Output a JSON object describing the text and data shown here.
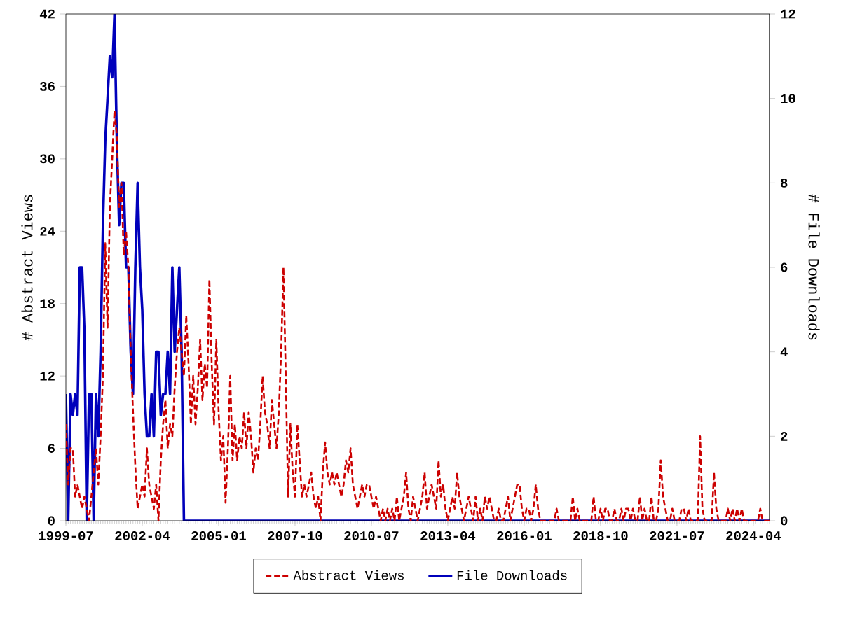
{
  "chart_data": {
    "type": "line",
    "xlabel": null,
    "ylabel": "# Abstract Views",
    "y2label": "# File Downloads",
    "x": [
      "1999-07",
      "1999-08",
      "1999-09",
      "1999-10",
      "1999-11",
      "1999-12",
      "2000-01",
      "2000-02",
      "2000-03",
      "2000-04",
      "2000-05",
      "2000-06",
      "2000-07",
      "2000-08",
      "2000-09",
      "2000-10",
      "2000-11",
      "2000-12",
      "2001-01",
      "2001-02",
      "2001-03",
      "2001-04",
      "2001-05",
      "2001-06",
      "2001-07",
      "2001-08",
      "2001-09",
      "2001-10",
      "2001-11",
      "2001-12",
      "2002-01",
      "2002-02",
      "2002-03",
      "2002-04",
      "2002-05",
      "2002-06",
      "2002-07",
      "2002-08",
      "2002-09",
      "2002-10",
      "2002-11",
      "2002-12",
      "2003-01",
      "2003-02",
      "2003-03",
      "2003-04",
      "2003-05",
      "2003-06",
      "2003-07",
      "2003-08",
      "2003-09",
      "2003-10",
      "2003-11",
      "2003-12",
      "2004-01",
      "2004-02",
      "2004-03",
      "2004-04",
      "2004-05",
      "2004-06",
      "2004-07",
      "2004-08",
      "2004-09",
      "2004-10",
      "2004-11",
      "2004-12",
      "2005-01",
      "2005-02",
      "2005-03",
      "2005-04",
      "2005-05",
      "2005-06",
      "2005-07",
      "2005-08",
      "2005-09",
      "2005-10",
      "2005-11",
      "2005-12",
      "2006-01",
      "2006-02",
      "2006-03",
      "2006-04",
      "2006-05",
      "2006-06",
      "2006-07",
      "2006-08",
      "2006-09",
      "2006-10",
      "2006-11",
      "2006-12",
      "2007-01",
      "2007-02",
      "2007-03",
      "2007-04",
      "2007-05",
      "2007-06",
      "2007-07",
      "2007-08",
      "2007-09",
      "2007-10",
      "2007-11",
      "2007-12",
      "2008-01",
      "2008-02",
      "2008-03",
      "2008-04",
      "2008-05",
      "2008-06",
      "2008-07",
      "2008-08",
      "2008-09",
      "2008-10",
      "2008-11",
      "2008-12",
      "2009-01",
      "2009-02",
      "2009-03",
      "2009-04",
      "2009-05",
      "2009-06",
      "2009-07",
      "2009-08",
      "2009-09",
      "2009-10",
      "2009-11",
      "2009-12",
      "2010-01",
      "2010-02",
      "2010-03",
      "2010-04",
      "2010-05",
      "2010-06",
      "2010-07",
      "2010-08",
      "2010-09",
      "2010-10",
      "2010-11",
      "2010-12",
      "2011-01",
      "2011-02",
      "2011-03",
      "2011-04",
      "2011-05",
      "2011-06",
      "2011-07",
      "2011-08",
      "2011-09",
      "2011-10",
      "2011-11",
      "2011-12",
      "2012-01",
      "2012-02",
      "2012-03",
      "2012-04",
      "2012-05",
      "2012-06",
      "2012-07",
      "2012-08",
      "2012-09",
      "2012-10",
      "2012-11",
      "2012-12",
      "2013-01",
      "2013-02",
      "2013-03",
      "2013-04",
      "2013-05",
      "2013-06",
      "2013-07",
      "2013-08",
      "2013-09",
      "2013-10",
      "2013-11",
      "2013-12",
      "2014-01",
      "2014-02",
      "2014-03",
      "2014-04",
      "2014-05",
      "2014-06",
      "2014-07",
      "2014-08",
      "2014-09",
      "2014-10",
      "2014-11",
      "2014-12",
      "2015-01",
      "2015-02",
      "2015-03",
      "2015-04",
      "2015-05",
      "2015-06",
      "2015-07",
      "2015-08",
      "2015-09",
      "2015-10",
      "2015-11",
      "2015-12",
      "2016-01",
      "2016-02",
      "2016-03",
      "2016-04",
      "2016-05",
      "2016-06",
      "2016-07",
      "2016-08",
      "2016-09",
      "2016-10",
      "2016-11",
      "2016-12",
      "2017-01",
      "2017-02",
      "2017-03",
      "2017-04",
      "2017-05",
      "2017-06",
      "2017-07",
      "2017-08",
      "2017-09",
      "2017-10",
      "2017-11",
      "2017-12",
      "2018-01",
      "2018-02",
      "2018-03",
      "2018-04",
      "2018-05",
      "2018-06",
      "2018-07",
      "2018-08",
      "2018-09",
      "2018-10",
      "2018-11",
      "2018-12",
      "2019-01",
      "2019-02",
      "2019-03",
      "2019-04",
      "2019-05",
      "2019-06",
      "2019-07",
      "2019-08",
      "2019-09",
      "2019-10",
      "2019-11",
      "2019-12",
      "2020-01",
      "2020-02",
      "2020-03",
      "2020-04",
      "2020-05",
      "2020-06",
      "2020-07",
      "2020-08",
      "2020-09",
      "2020-10",
      "2020-11",
      "2020-12",
      "2021-01",
      "2021-02",
      "2021-03",
      "2021-04",
      "2021-05",
      "2021-06",
      "2021-07",
      "2021-08",
      "2021-09",
      "2021-10",
      "2021-11",
      "2021-12",
      "2022-01",
      "2022-02",
      "2022-03",
      "2022-04",
      "2022-05",
      "2022-06",
      "2022-07",
      "2022-08",
      "2022-09",
      "2022-10",
      "2022-11",
      "2022-12",
      "2023-01",
      "2023-02",
      "2023-03",
      "2023-04",
      "2023-05",
      "2023-06",
      "2023-07",
      "2023-08",
      "2023-09",
      "2023-10",
      "2023-11",
      "2023-12",
      "2024-01",
      "2024-02",
      "2024-03",
      "2024-04",
      "2024-05",
      "2024-06",
      "2024-07",
      "2024-08",
      "2024-09",
      "2024-10",
      "2024-11"
    ],
    "series": [
      {
        "name": "Abstract Views",
        "color": "#cc0000",
        "line_style": "dashed",
        "values": [
          8,
          3,
          6,
          6,
          2,
          3,
          2,
          1,
          2,
          1,
          0,
          2,
          4,
          6,
          3,
          7,
          12,
          23,
          16,
          26,
          30,
          34,
          32,
          26,
          28,
          22,
          24,
          21,
          14,
          9,
          4.5,
          1,
          2,
          3,
          2,
          6,
          3,
          2,
          1,
          3,
          0,
          5,
          8,
          10,
          6,
          8,
          7,
          11,
          14,
          16,
          14,
          12,
          17,
          13,
          8,
          12,
          8,
          11,
          15,
          10,
          13,
          11,
          20,
          13,
          8,
          15,
          9,
          5,
          7,
          1.5,
          6,
          12,
          5,
          8,
          5,
          7,
          6,
          9,
          6,
          9,
          7,
          4,
          6,
          5,
          8,
          12,
          9,
          8,
          6,
          10,
          8,
          6,
          9,
          14,
          21,
          12,
          2,
          8,
          4,
          2,
          8,
          5,
          2,
          3,
          2,
          3,
          4,
          2,
          1,
          2,
          0,
          4,
          6.5,
          4,
          3,
          4,
          3,
          4,
          3,
          2,
          3,
          5,
          4,
          6,
          3,
          2,
          1,
          2,
          3,
          2,
          3,
          3,
          2,
          1,
          2,
          1,
          0,
          1,
          0,
          1,
          0,
          1,
          0,
          2,
          0,
          1,
          2,
          4,
          1,
          0,
          2,
          1,
          0,
          1,
          2,
          4,
          1,
          2,
          3,
          2,
          1,
          5,
          2,
          3,
          1,
          0,
          1,
          2,
          1,
          4,
          2,
          1,
          0,
          1,
          2,
          1,
          0,
          2,
          0,
          1,
          0,
          2,
          1,
          2,
          1,
          0,
          0,
          1,
          0,
          0,
          1,
          2,
          0,
          1,
          2,
          3,
          3,
          1,
          0,
          1,
          1,
          0,
          1,
          3,
          1,
          0,
          0,
          0,
          0,
          0,
          0,
          0,
          1,
          0,
          0,
          0,
          0,
          0,
          0,
          2,
          0,
          1,
          0,
          0,
          0,
          0,
          0,
          0,
          2,
          0,
          0,
          1,
          0,
          1,
          1,
          0,
          0,
          1,
          0,
          0,
          1,
          0,
          1,
          1,
          0,
          1,
          0,
          0,
          2,
          0,
          1,
          0,
          0,
          2,
          0,
          0,
          1,
          5,
          2,
          1,
          0,
          0,
          1,
          0,
          0,
          0,
          1,
          1,
          0,
          1,
          0,
          0,
          0,
          0,
          7,
          1,
          0,
          0,
          0,
          0,
          4,
          1,
          0,
          0,
          0,
          0,
          1,
          0,
          1,
          0,
          1,
          0,
          1,
          0,
          0,
          0,
          0,
          0,
          0,
          0,
          1,
          0,
          0,
          0,
          0
        ]
      },
      {
        "name": "File Downloads",
        "color": "#0000bb",
        "line_style": "solid",
        "axis": "y2",
        "values": [
          3,
          0,
          3,
          2.5,
          3,
          2.5,
          6,
          6,
          4.5,
          0,
          3,
          3,
          0,
          3,
          2,
          4,
          7,
          9,
          10,
          11,
          10.5,
          12,
          9,
          7,
          8,
          8,
          6,
          6,
          4,
          3,
          6,
          8,
          6,
          5,
          3,
          2,
          2,
          3,
          2,
          4,
          4,
          2.5,
          3,
          3,
          4,
          3,
          6,
          4,
          5,
          6,
          4,
          0,
          0,
          0,
          0,
          0,
          0,
          0,
          0,
          0,
          0,
          0,
          0,
          0,
          0,
          0,
          0,
          0,
          0,
          0,
          0,
          0,
          0,
          0,
          0,
          0,
          0,
          0,
          0,
          0,
          0,
          0,
          0,
          0,
          0,
          0,
          0,
          0,
          0,
          0,
          0,
          0,
          0,
          0,
          0,
          0,
          0,
          0,
          0,
          0,
          0,
          0,
          0,
          0,
          0,
          0,
          0,
          0,
          0,
          0,
          0,
          0,
          0,
          0,
          0,
          0,
          0,
          0,
          0,
          0,
          0,
          0,
          0,
          0,
          0,
          0,
          0,
          0,
          0,
          0,
          0,
          0,
          0,
          0,
          0,
          0,
          0,
          0,
          0,
          0,
          0,
          0,
          0,
          0,
          0,
          0,
          0,
          0,
          0,
          0,
          0,
          0,
          0,
          0,
          0,
          0,
          0,
          0,
          0,
          0,
          0,
          0,
          0,
          0,
          0,
          0,
          0,
          0,
          0,
          0,
          0,
          0,
          0,
          0,
          0,
          0,
          0,
          0,
          0,
          0,
          0,
          0,
          0,
          0,
          0,
          0,
          0,
          0,
          0,
          0,
          0,
          0,
          0,
          0,
          0,
          0,
          0,
          0,
          0,
          0,
          0,
          0,
          0,
          0,
          0,
          0,
          0,
          0,
          0,
          0,
          0,
          0,
          0,
          0,
          0,
          0,
          0,
          0,
          0,
          0,
          0,
          0,
          0,
          0,
          0,
          0,
          0,
          0,
          0,
          0,
          0,
          0,
          0,
          0,
          0,
          0,
          0,
          0,
          0,
          0,
          0,
          0,
          0,
          0,
          0,
          0,
          0,
          0,
          0,
          0,
          0,
          0,
          0,
          0,
          0,
          0,
          0,
          0,
          0,
          0,
          0,
          0,
          0,
          0,
          0,
          0,
          0,
          0,
          0,
          0,
          0,
          0,
          0,
          0,
          0,
          0,
          0,
          0,
          0,
          0,
          0,
          0,
          0,
          0,
          0,
          0,
          0,
          0,
          0,
          0,
          0,
          0,
          0,
          0,
          0,
          0,
          0,
          0,
          0,
          0,
          0,
          0,
          0,
          0,
          0
        ]
      }
    ],
    "xlim": [
      "1999-07",
      "2024-11"
    ],
    "xticks": [
      "1999-07",
      "2002-04",
      "2005-01",
      "2007-10",
      "2010-07",
      "2013-04",
      "2016-01",
      "2018-10",
      "2021-07",
      "2024-04"
    ],
    "ylim": [
      0,
      42
    ],
    "yticks": [
      0,
      6,
      12,
      18,
      24,
      30,
      36,
      42
    ],
    "y2lim": [
      0,
      12
    ],
    "y2ticks": [
      0,
      2,
      4,
      6,
      8,
      10,
      12
    ],
    "legend": "bottom",
    "marker": "none"
  }
}
